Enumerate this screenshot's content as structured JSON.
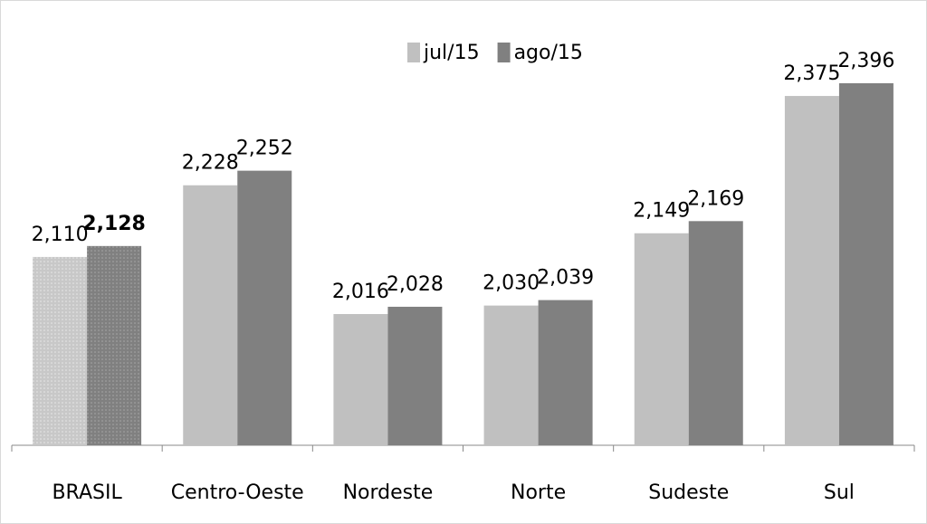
{
  "chart_data": {
    "type": "bar",
    "categories": [
      "BRASIL",
      "Centro-Oeste",
      "Nordeste",
      "Norte",
      "Sudeste",
      "Sul"
    ],
    "series": [
      {
        "name": "jul/15",
        "color": "#c0c0c0",
        "values": [
          2.11,
          2.228,
          2.016,
          2.03,
          2.149,
          2.375
        ],
        "value_labels": [
          "2,110",
          "2,228",
          "2,016",
          "2,030",
          "2,149",
          "2,375"
        ]
      },
      {
        "name": "ago/15",
        "color": "#808080",
        "values": [
          2.128,
          2.252,
          2.028,
          2.039,
          2.169,
          2.396
        ],
        "value_labels": [
          "2,128",
          "2,252",
          "2,028",
          "2,039",
          "2,169",
          "2,396"
        ]
      }
    ],
    "ylim": [
      1.8,
      2.533
    ]
  }
}
